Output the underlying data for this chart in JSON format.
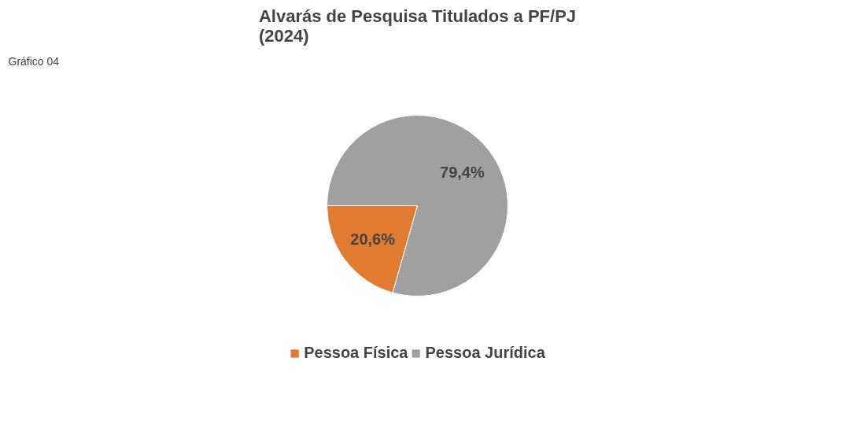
{
  "chart_data": {
    "type": "pie",
    "title": "Alvarás de Pesquisa Titulados a PF/PJ\n(2024)",
    "annotations": [
      "Gráfico  04"
    ],
    "categories": [
      "Pessoa Física",
      "Pessoa Jurídica"
    ],
    "values": [
      20.6,
      79.4
    ],
    "colors": [
      "#e07b30",
      "#a0a0a0"
    ],
    "value_labels": [
      "20,6%",
      "79,4%"
    ],
    "legend": "bottom"
  }
}
